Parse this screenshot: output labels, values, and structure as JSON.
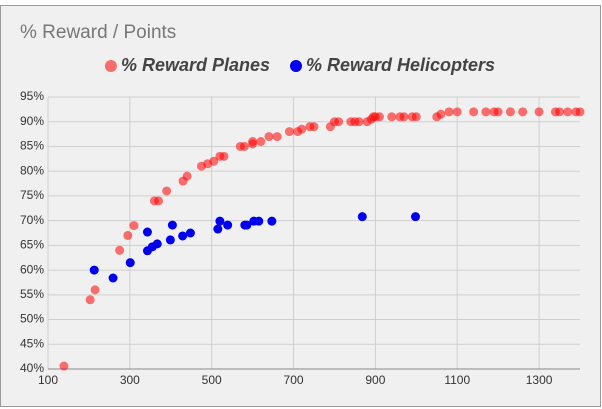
{
  "chart_data": {
    "type": "scatter",
    "title": "% Reward / Points",
    "xlim": [
      100,
      1400
    ],
    "xticks": [
      100,
      300,
      500,
      700,
      900,
      1100,
      1300
    ],
    "ylim": [
      40,
      95
    ],
    "yticks": [
      {
        "value": 40,
        "label": "40%"
      },
      {
        "value": 45,
        "label": "45%"
      },
      {
        "value": 50,
        "label": "50%"
      },
      {
        "value": 55,
        "label": "55%"
      },
      {
        "value": 60,
        "label": "60%"
      },
      {
        "value": 65,
        "label": "65%"
      },
      {
        "value": 70,
        "label": "70%"
      },
      {
        "value": 75,
        "label": "75%"
      },
      {
        "value": 80,
        "label": "80%"
      },
      {
        "value": 85,
        "label": "85%"
      },
      {
        "value": 90,
        "label": "90%"
      },
      {
        "value": 95,
        "label": "95%"
      }
    ],
    "grid": true,
    "legend": "top",
    "series": [
      {
        "name": "% Reward Planes",
        "color": "#ff0000",
        "x": [
          139,
          203,
          215,
          275,
          295,
          310,
          360,
          370,
          390,
          430,
          440,
          475,
          490,
          505,
          520,
          530,
          570,
          580,
          600,
          600,
          620,
          640,
          660,
          690,
          710,
          720,
          740,
          750,
          790,
          800,
          810,
          840,
          850,
          860,
          880,
          890,
          895,
          900,
          910,
          940,
          960,
          970,
          990,
          1000,
          1050,
          1060,
          1080,
          1100,
          1140,
          1170,
          1190,
          1200,
          1230,
          1260,
          1300,
          1340,
          1350,
          1370,
          1390,
          1400
        ],
        "values": [
          40.6,
          54,
          56,
          64,
          67,
          69,
          74,
          74,
          76,
          78,
          79,
          81,
          81.5,
          82,
          83,
          83,
          85,
          85,
          85.5,
          86,
          86,
          87,
          87,
          88,
          88,
          88.5,
          89,
          89,
          89,
          90,
          90,
          90,
          90,
          90,
          90,
          90.5,
          91,
          91,
          91,
          91,
          91,
          91,
          91,
          91,
          91,
          91.5,
          92,
          92,
          92,
          92,
          92,
          92,
          92,
          92,
          92,
          92,
          92,
          92,
          92,
          92
        ]
      },
      {
        "name": "% Reward Helicopters",
        "color": "#0000ee",
        "x": [
          213,
          259,
          301,
          343,
          343,
          355,
          367,
          399,
          404,
          429,
          448,
          515,
          520,
          539,
          581,
          586,
          603,
          615,
          647,
          868,
          998
        ],
        "values": [
          60.0,
          58.4,
          61.5,
          67.7,
          63.9,
          64.7,
          65.3,
          66.1,
          69.1,
          66.9,
          67.5,
          68.3,
          69.9,
          69.1,
          69.1,
          69.1,
          69.9,
          69.9,
          69.9,
          70.8,
          70.8
        ]
      }
    ]
  }
}
